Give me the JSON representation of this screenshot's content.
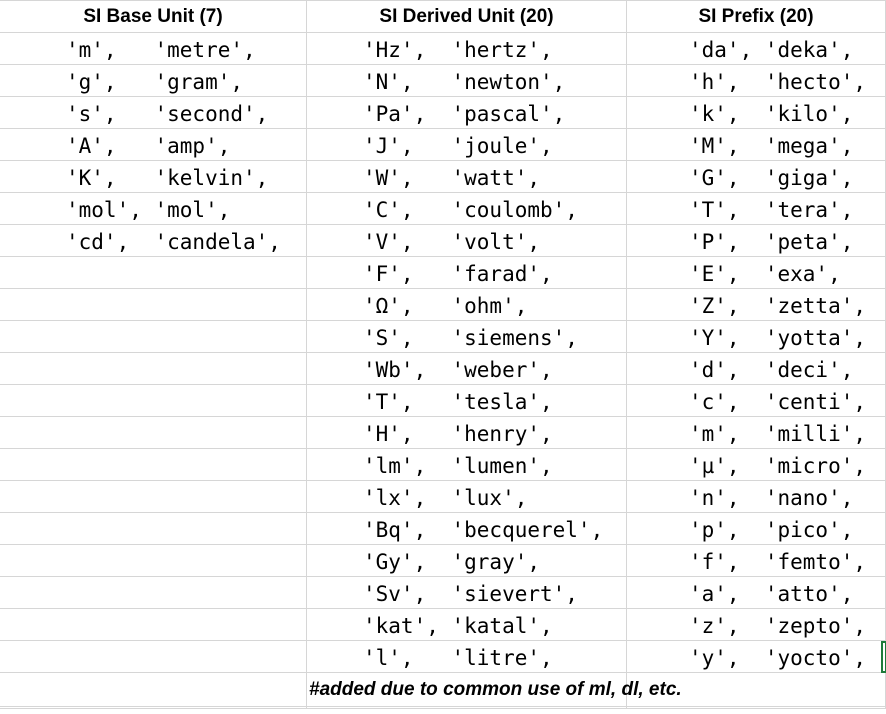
{
  "headers": [
    "SI Base Unit (7)",
    "SI Derived Unit (20)",
    "SI Prefix (20)"
  ],
  "base_units": [
    "'m',   'metre',",
    "'g',   'gram',",
    "'s',   'second',",
    "'A',   'amp',",
    "'K',   'kelvin',",
    "'mol', 'mol',",
    "'cd',  'candela',"
  ],
  "derived_units": [
    "'Hz',  'hertz',",
    "'N',   'newton',",
    "'Pa',  'pascal',",
    "'J',   'joule',",
    "'W',   'watt',",
    "'C',   'coulomb',",
    "'V',   'volt',",
    "'F',   'farad',",
    "'Ω',   'ohm',",
    "'S',   'siemens',",
    "'Wb',  'weber',",
    "'T',   'tesla',",
    "'H',   'henry',",
    "'lm',  'lumen',",
    "'lx',  'lux',",
    "'Bq',  'becquerel',",
    "'Gy',  'gray',",
    "'Sv',  'sievert',",
    "'kat', 'katal',",
    "'l',   'litre',"
  ],
  "prefixes": [
    "'da', 'deka',",
    "'h',  'hecto',",
    "'k',  'kilo',",
    "'M',  'mega',",
    "'G',  'giga',",
    "'T',  'tera',",
    "'P',  'peta',",
    "'E',  'exa',",
    "'Z',  'zetta',",
    "'Y',  'yotta',",
    "'d',  'deci',",
    "'c',  'centi',",
    "'m',  'milli',",
    "'µ',  'micro',",
    "'n',  'nano',",
    "'p',  'pico',",
    "'f',  'femto',",
    "'a',  'atto',",
    "'z',  'zepto',",
    "'y',  'yocto',"
  ],
  "note": "#added due to common use of ml, dl, etc.",
  "selection_color": "#1f7a3a"
}
